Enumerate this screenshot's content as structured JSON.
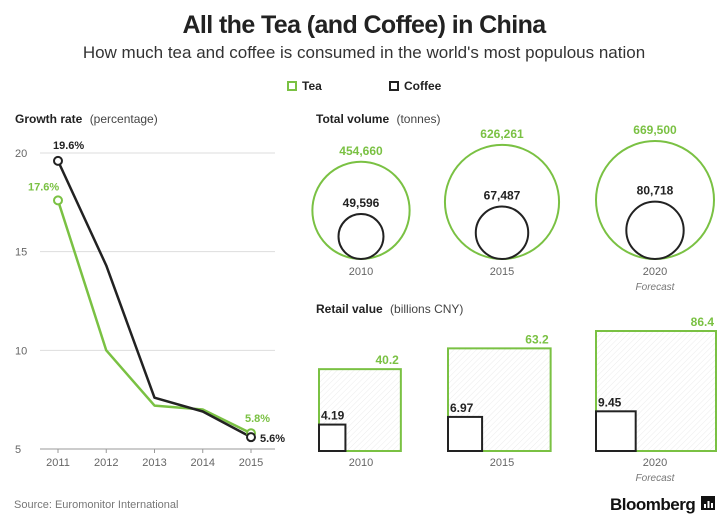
{
  "title": "All the Tea (and Coffee) in China",
  "subtitle": "How much tea and coffee is consumed in the world's most populous nation",
  "source": "Source: Euromonitor International",
  "brand": "Bloomberg",
  "colors": {
    "tea": "#7ac143",
    "coffee": "#222222",
    "grid": "#dddddd",
    "axis": "#999999",
    "label": "#666666"
  },
  "legend": [
    {
      "name": "Tea",
      "color": "#7ac143"
    },
    {
      "name": "Coffee",
      "color": "#222222"
    }
  ],
  "chart_data": [
    {
      "type": "line",
      "title": "Growth rate",
      "title_suffix": "(percentage)",
      "categories": [
        "2011",
        "2012",
        "2013",
        "2014",
        "2015"
      ],
      "ylim": [
        5,
        20
      ],
      "yticks": [
        "5",
        "10",
        "15",
        "20"
      ],
      "grid": true,
      "series": [
        {
          "name": "Tea",
          "values": [
            17.6,
            10.0,
            7.2,
            7.0,
            5.8
          ],
          "labels": [
            "17.6%",
            "",
            "",
            "",
            "5.8%"
          ]
        },
        {
          "name": "Coffee",
          "values": [
            19.6,
            14.3,
            7.6,
            6.9,
            5.6
          ],
          "labels": [
            "19.6%",
            "",
            "",
            "",
            "5.6%"
          ]
        }
      ]
    },
    {
      "type": "bubble",
      "title": "Total volume",
      "title_suffix": "(tonnes)",
      "categories": [
        "2010",
        "2015",
        "2020"
      ],
      "notes": [
        "",
        "",
        "Forecast"
      ],
      "series": [
        {
          "name": "Tea",
          "values": [
            454660,
            626261,
            669500
          ],
          "labels": [
            "454,660",
            "626,261",
            "669,500"
          ]
        },
        {
          "name": "Coffee",
          "values": [
            49596,
            67487,
            80718
          ],
          "labels": [
            "49,596",
            "67,487",
            "80,718"
          ]
        }
      ]
    },
    {
      "type": "area-square",
      "title": "Retail value",
      "title_suffix": "(billions CNY)",
      "categories": [
        "2010",
        "2015",
        "2020"
      ],
      "notes": [
        "",
        "",
        "Forecast"
      ],
      "series": [
        {
          "name": "Tea",
          "values": [
            40.2,
            63.2,
            86.4
          ],
          "labels": [
            "40.2",
            "63.2",
            "86.4"
          ]
        },
        {
          "name": "Coffee",
          "values": [
            4.19,
            6.97,
            9.45
          ],
          "labels": [
            "4.19",
            "6.97",
            "9.45"
          ]
        }
      ]
    }
  ]
}
